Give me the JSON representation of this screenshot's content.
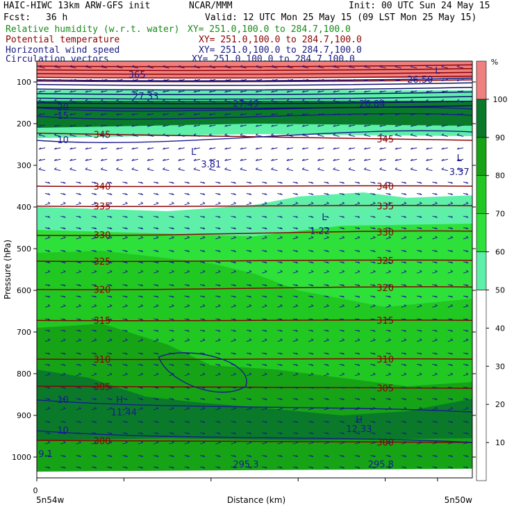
{
  "header": {
    "model": "HAIC-HIWC 13km ARW-GFS init",
    "org": "NCAR/MMM",
    "init": "Init: 00 UTC Sun 24 May 15",
    "fcst_label": "Fcst:",
    "fcst_value": "36 h",
    "valid": "Valid: 12 UTC Mon 25 May 15 (09 LST Mon 25 May 15)"
  },
  "fields": [
    {
      "name": "Relative humidity (w.r.t. water)",
      "xy": "XY= 251.0,100.0 to 284.7,100.0",
      "color": "#168a16"
    },
    {
      "name": "Potential temperature",
      "xy": "XY= 251.0,100.0 to 284.7,100.0",
      "color": "#8b0000"
    },
    {
      "name": "Horizontal wind speed",
      "xy": "XY= 251.0,100.0 to 284.7,100.0",
      "color": "#1a1a80"
    },
    {
      "name": "Circulation vectors",
      "xy": "XY= 251.0,100.0 to 284.7,100.0",
      "color": "#1a1a80"
    }
  ],
  "chart_data": {
    "type": "heatmap",
    "title": "HAIC-HIWC 13km ARW-GFS init",
    "xlabel": "Distance (km)",
    "ylabel": "Pressure (hPa)",
    "x_tick_labels": [
      "0"
    ],
    "x_end_labels": [
      "5n54w",
      "5n50w"
    ],
    "y_ticks": [
      100,
      200,
      300,
      400,
      500,
      600,
      700,
      800,
      900,
      1000
    ],
    "y_range_hpa": [
      1050,
      50
    ],
    "colorbar": {
      "unit": "%",
      "ticks": [
        10,
        20,
        30,
        40,
        50,
        60,
        70,
        80,
        90,
        100
      ],
      "bands": [
        {
          "from": 0,
          "to": 50,
          "color": "#ffffff"
        },
        {
          "from": 50,
          "to": 60,
          "color": "#5ef0a8"
        },
        {
          "from": 60,
          "to": 70,
          "color": "#2ee03a"
        },
        {
          "from": 70,
          "to": 80,
          "color": "#22c822"
        },
        {
          "from": 80,
          "to": 90,
          "color": "#16a416"
        },
        {
          "from": 90,
          "to": 100,
          "color": "#0a7a2a"
        },
        {
          "from": 100,
          "to": 110,
          "color": "#f08080"
        }
      ]
    },
    "theta_contours": [
      {
        "value": 300,
        "p_left": 960,
        "p_right": 965,
        "label": "300"
      },
      {
        "value": 305,
        "p_left": 830,
        "p_right": 835,
        "label": "305"
      },
      {
        "value": 310,
        "p_left": 765,
        "p_right": 765,
        "label": "310"
      },
      {
        "value": 315,
        "p_left": 672,
        "p_right": 672,
        "label": "315"
      },
      {
        "value": 320,
        "p_left": 598,
        "p_right": 592,
        "label": "320"
      },
      {
        "value": 325,
        "p_left": 530,
        "p_right": 528,
        "label": "325"
      },
      {
        "value": 330,
        "p_left": 468,
        "p_right": 458,
        "label": "330"
      },
      {
        "value": 335,
        "p_left": 398,
        "p_right": 397,
        "label": "335"
      },
      {
        "value": 340,
        "p_left": 350,
        "p_right": 350,
        "label": "340"
      },
      {
        "value": 345,
        "p_left": 223,
        "p_right": 240,
        "label": "345"
      }
    ],
    "speed_contours": [
      {
        "value": 10,
        "p_left": 863,
        "p_right": 892,
        "label": "10"
      },
      {
        "value": 10,
        "p_left": 937,
        "p_right": 965,
        "label": "10"
      },
      {
        "value": 10,
        "p_left": 240,
        "p_right": 220,
        "label": "10"
      },
      {
        "value": 15,
        "p_left": 182,
        "p_right": 180,
        "label": "15"
      },
      {
        "value": 20,
        "p_left": 162,
        "p_right": 165,
        "label": "20"
      }
    ],
    "annotations": [
      {
        "text": "L",
        "x_frac": 0.36,
        "p": 275
      },
      {
        "text": "3.81",
        "x_frac": 0.4,
        "p": 305
      },
      {
        "text": "L",
        "x_frac": 0.97,
        "p": 290
      },
      {
        "text": "3.37",
        "x_frac": 0.97,
        "p": 323
      },
      {
        "text": "L",
        "x_frac": 0.66,
        "p": 432
      },
      {
        "text": "1.22",
        "x_frac": 0.65,
        "p": 465
      },
      {
        "text": "H",
        "x_frac": 0.19,
        "p": 870
      },
      {
        "text": "11.44",
        "x_frac": 0.2,
        "p": 900
      },
      {
        "text": "H",
        "x_frac": 0.74,
        "p": 918
      },
      {
        "text": "12.33",
        "x_frac": 0.74,
        "p": 940
      },
      {
        "text": "27.49",
        "x_frac": 0.48,
        "p": 160
      },
      {
        "text": "26.84",
        "x_frac": 0.77,
        "p": 160
      },
      {
        "text": "27.33",
        "x_frac": 0.25,
        "p": 142
      },
      {
        "text": "26.50",
        "x_frac": 0.88,
        "p": 102
      },
      {
        "text": "L",
        "x_frac": 0.92,
        "p": 80
      },
      {
        "text": "295.3",
        "x_frac": 0.48,
        "p": 1025
      },
      {
        "text": "295.8",
        "x_frac": 0.79,
        "p": 1025
      },
      {
        "text": "9.1",
        "x_frac": 0.02,
        "p": 1000
      },
      {
        "text": "365",
        "x_frac": 0.23,
        "p": 90
      }
    ]
  }
}
